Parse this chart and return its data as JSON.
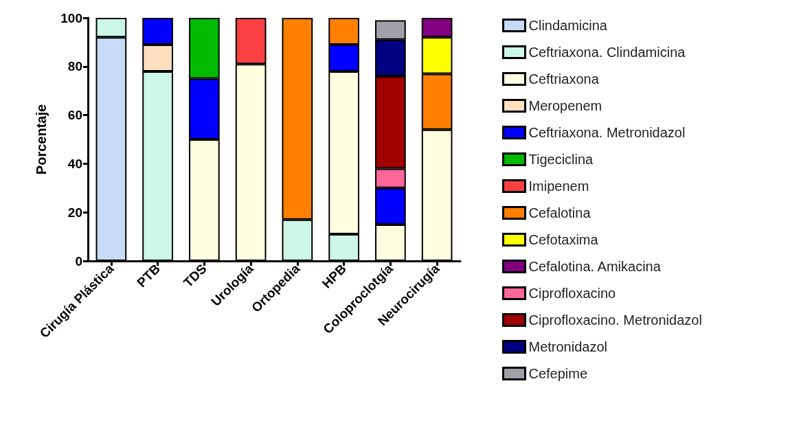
{
  "chart_data": {
    "type": "bar",
    "stacked": true,
    "ylabel": "Porcentaje",
    "categories": [
      "Cirugía Plástica",
      "PTB",
      "TDS",
      "Urología",
      "Ortopedia",
      "HPB",
      "Coloproclotgía",
      "Neurocirugía"
    ],
    "ylim": [
      0,
      100
    ],
    "yticks": [
      0,
      20,
      40,
      60,
      80,
      100
    ],
    "grid": false,
    "legend": "right",
    "series": [
      {
        "name": "Clindamicina",
        "color": "#c6dbf5",
        "values": [
          92,
          null,
          null,
          null,
          null,
          null,
          null,
          null
        ]
      },
      {
        "name": "Ceftriaxona. Clindamicina",
        "color": "#ccf7e6",
        "values": [
          8,
          78,
          null,
          null,
          17,
          11,
          null,
          null
        ]
      },
      {
        "name": "Ceftriaxona",
        "color": "#fffde0",
        "values": [
          null,
          null,
          50,
          81,
          null,
          67,
          15,
          54
        ]
      },
      {
        "name": "Meropenem",
        "color": "#ffdfc0",
        "values": [
          null,
          11,
          null,
          null,
          null,
          null,
          null,
          null
        ]
      },
      {
        "name": "Ceftriaxona. Metronidazol",
        "color": "#0000ff",
        "values": [
          null,
          11,
          25,
          null,
          null,
          11,
          15,
          null
        ]
      },
      {
        "name": "Tigeciclina",
        "color": "#00bb00",
        "values": [
          null,
          null,
          25,
          null,
          null,
          null,
          null,
          null
        ]
      },
      {
        "name": "Imipenem",
        "color": "#fa4040",
        "values": [
          null,
          null,
          null,
          19,
          null,
          null,
          null,
          null
        ]
      },
      {
        "name": "Cefalotina",
        "color": "#ff8000",
        "values": [
          null,
          null,
          null,
          null,
          83,
          11,
          null,
          23
        ]
      },
      {
        "name": "Cefotaxima",
        "color": "#ffff00",
        "values": [
          null,
          null,
          null,
          null,
          null,
          null,
          null,
          15
        ]
      },
      {
        "name": "Cefalotina. Amikacina",
        "color": "#800080",
        "values": [
          null,
          null,
          null,
          null,
          null,
          null,
          null,
          8
        ]
      },
      {
        "name": "Ciprofloxacino",
        "color": "#ff6699",
        "values": [
          null,
          null,
          null,
          null,
          null,
          null,
          8,
          null
        ]
      },
      {
        "name": "Ciprofloxacino. Metronidazol",
        "color": "#a00000",
        "values": [
          null,
          null,
          null,
          null,
          null,
          null,
          38,
          null
        ]
      },
      {
        "name": "Metronidazol",
        "color": "#000080",
        "values": [
          null,
          null,
          null,
          null,
          null,
          null,
          15,
          null
        ]
      },
      {
        "name": "Cefepime",
        "color": "#a0a0a8",
        "values": [
          null,
          null,
          null,
          null,
          null,
          null,
          8,
          null
        ]
      }
    ]
  }
}
